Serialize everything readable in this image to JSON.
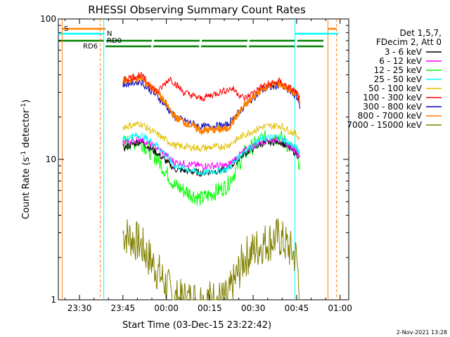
{
  "chart_data": {
    "type": "line",
    "title": "RHESSI Observing Summary Count Rates",
    "xlabel": "Start Time (03-Dec-15 23:22:42)",
    "ylabel_main": "Count Rate (s",
    "ylabel_sup1": "-1",
    "ylabel_mid": " detector",
    "ylabel_sup2": "-1",
    "ylabel_end": ")",
    "yscale": "log",
    "ylim": [
      1,
      100
    ],
    "xlim": [
      "23:22:42",
      "01:03:00"
    ],
    "x_ticks": [
      "23:30",
      "23:45",
      "00:00",
      "00:15",
      "00:30",
      "00:45",
      "01:00"
    ],
    "y_ticks": [
      "1",
      "10",
      "100"
    ],
    "grid": false,
    "legend_placement": "right",
    "legend_header": [
      "Det 1,5,7,",
      "FDecim 2, Att 0"
    ],
    "footer": "2-Nov-2021 13:28",
    "flags": [
      {
        "label": "S",
        "color": "#ff8000"
      },
      {
        "label": "N",
        "color": "#00ffff"
      },
      {
        "label": "RD0",
        "color": "#008000"
      },
      {
        "label": "RD6",
        "color": "#008000"
      }
    ],
    "series": [
      {
        "name": "3 - 6 keV",
        "color": "#000000",
        "values": [
          [
            23.75,
            12
          ],
          [
            23.85,
            13.5
          ],
          [
            23.95,
            11
          ],
          [
            24.05,
            8.5
          ],
          [
            24.2,
            8
          ],
          [
            24.35,
            8.5
          ],
          [
            24.45,
            11
          ],
          [
            24.55,
            13
          ],
          [
            24.65,
            13.5
          ],
          [
            24.75,
            11
          ],
          [
            24.77,
            10
          ]
        ]
      },
      {
        "name": "6 - 12 keV",
        "color": "#ff00ff",
        "values": [
          [
            23.75,
            13
          ],
          [
            23.85,
            14
          ],
          [
            23.95,
            12
          ],
          [
            24.05,
            9.5
          ],
          [
            24.2,
            9
          ],
          [
            24.35,
            9
          ],
          [
            24.45,
            11.5
          ],
          [
            24.55,
            13.5
          ],
          [
            24.65,
            14
          ],
          [
            24.75,
            11.5
          ],
          [
            24.77,
            10.5
          ]
        ]
      },
      {
        "name": "12 - 25 keV",
        "color": "#00ff00",
        "values": [
          [
            23.75,
            13
          ],
          [
            23.85,
            13.5
          ],
          [
            23.95,
            10
          ],
          [
            24.05,
            6.5
          ],
          [
            24.2,
            5.2
          ],
          [
            24.35,
            6.5
          ],
          [
            24.45,
            11
          ],
          [
            24.55,
            14
          ],
          [
            24.65,
            14.5
          ],
          [
            24.75,
            11
          ],
          [
            24.77,
            9
          ]
        ]
      },
      {
        "name": "25 - 50 keV",
        "color": "#00ffff",
        "values": [
          [
            23.75,
            14
          ],
          [
            23.85,
            15
          ],
          [
            23.95,
            12.5
          ],
          [
            24.05,
            9
          ],
          [
            24.2,
            8
          ],
          [
            24.35,
            8.5
          ],
          [
            24.45,
            11.5
          ],
          [
            24.55,
            14
          ],
          [
            24.65,
            14.5
          ],
          [
            24.75,
            12
          ],
          [
            24.77,
            11
          ]
        ]
      },
      {
        "name": "50 - 100 keV",
        "color": "#e0c000",
        "values": [
          [
            23.75,
            17
          ],
          [
            23.85,
            18
          ],
          [
            23.95,
            15
          ],
          [
            24.05,
            12.5
          ],
          [
            24.2,
            12
          ],
          [
            24.35,
            12.5
          ],
          [
            24.45,
            15
          ],
          [
            24.55,
            17
          ],
          [
            24.65,
            17.5
          ],
          [
            24.75,
            15
          ],
          [
            24.77,
            14
          ]
        ]
      },
      {
        "name": "100 - 300 keV",
        "color": "#ff0000",
        "values": [
          [
            23.75,
            37
          ],
          [
            23.85,
            40
          ],
          [
            23.95,
            30
          ],
          [
            24.02,
            38
          ],
          [
            24.1,
            30
          ],
          [
            24.2,
            27
          ],
          [
            24.3,
            30
          ],
          [
            24.38,
            32
          ],
          [
            24.45,
            27
          ],
          [
            24.55,
            33
          ],
          [
            24.65,
            36
          ],
          [
            24.75,
            30
          ],
          [
            24.77,
            26
          ]
        ]
      },
      {
        "name": "300 - 800 keV",
        "color": "#0000c0",
        "values": [
          [
            23.75,
            34
          ],
          [
            23.85,
            36
          ],
          [
            23.95,
            28
          ],
          [
            24.05,
            20
          ],
          [
            24.2,
            17
          ],
          [
            24.35,
            17.5
          ],
          [
            24.45,
            24
          ],
          [
            24.55,
            31
          ],
          [
            24.65,
            34
          ],
          [
            24.75,
            28
          ],
          [
            24.77,
            24
          ]
        ]
      },
      {
        "name": "800 - 7000 keV",
        "color": "#ff8000",
        "values": [
          [
            23.75,
            36
          ],
          [
            23.85,
            38
          ],
          [
            23.95,
            30
          ],
          [
            24.05,
            20
          ],
          [
            24.2,
            16
          ],
          [
            24.35,
            16.5
          ],
          [
            24.45,
            24
          ],
          [
            24.55,
            32
          ],
          [
            24.65,
            35
          ],
          [
            24.75,
            29
          ],
          [
            24.77,
            25
          ]
        ]
      },
      {
        "name": "7000 - 15000 keV",
        "color": "#808000",
        "values": [
          [
            23.75,
            3
          ],
          [
            23.85,
            2.5
          ],
          [
            23.95,
            1.6
          ],
          [
            24.05,
            1
          ],
          [
            24.35,
            1
          ],
          [
            24.45,
            2
          ],
          [
            24.55,
            2.5
          ],
          [
            24.65,
            2.8
          ],
          [
            24.75,
            2
          ],
          [
            24.77,
            1
          ]
        ]
      }
    ]
  }
}
